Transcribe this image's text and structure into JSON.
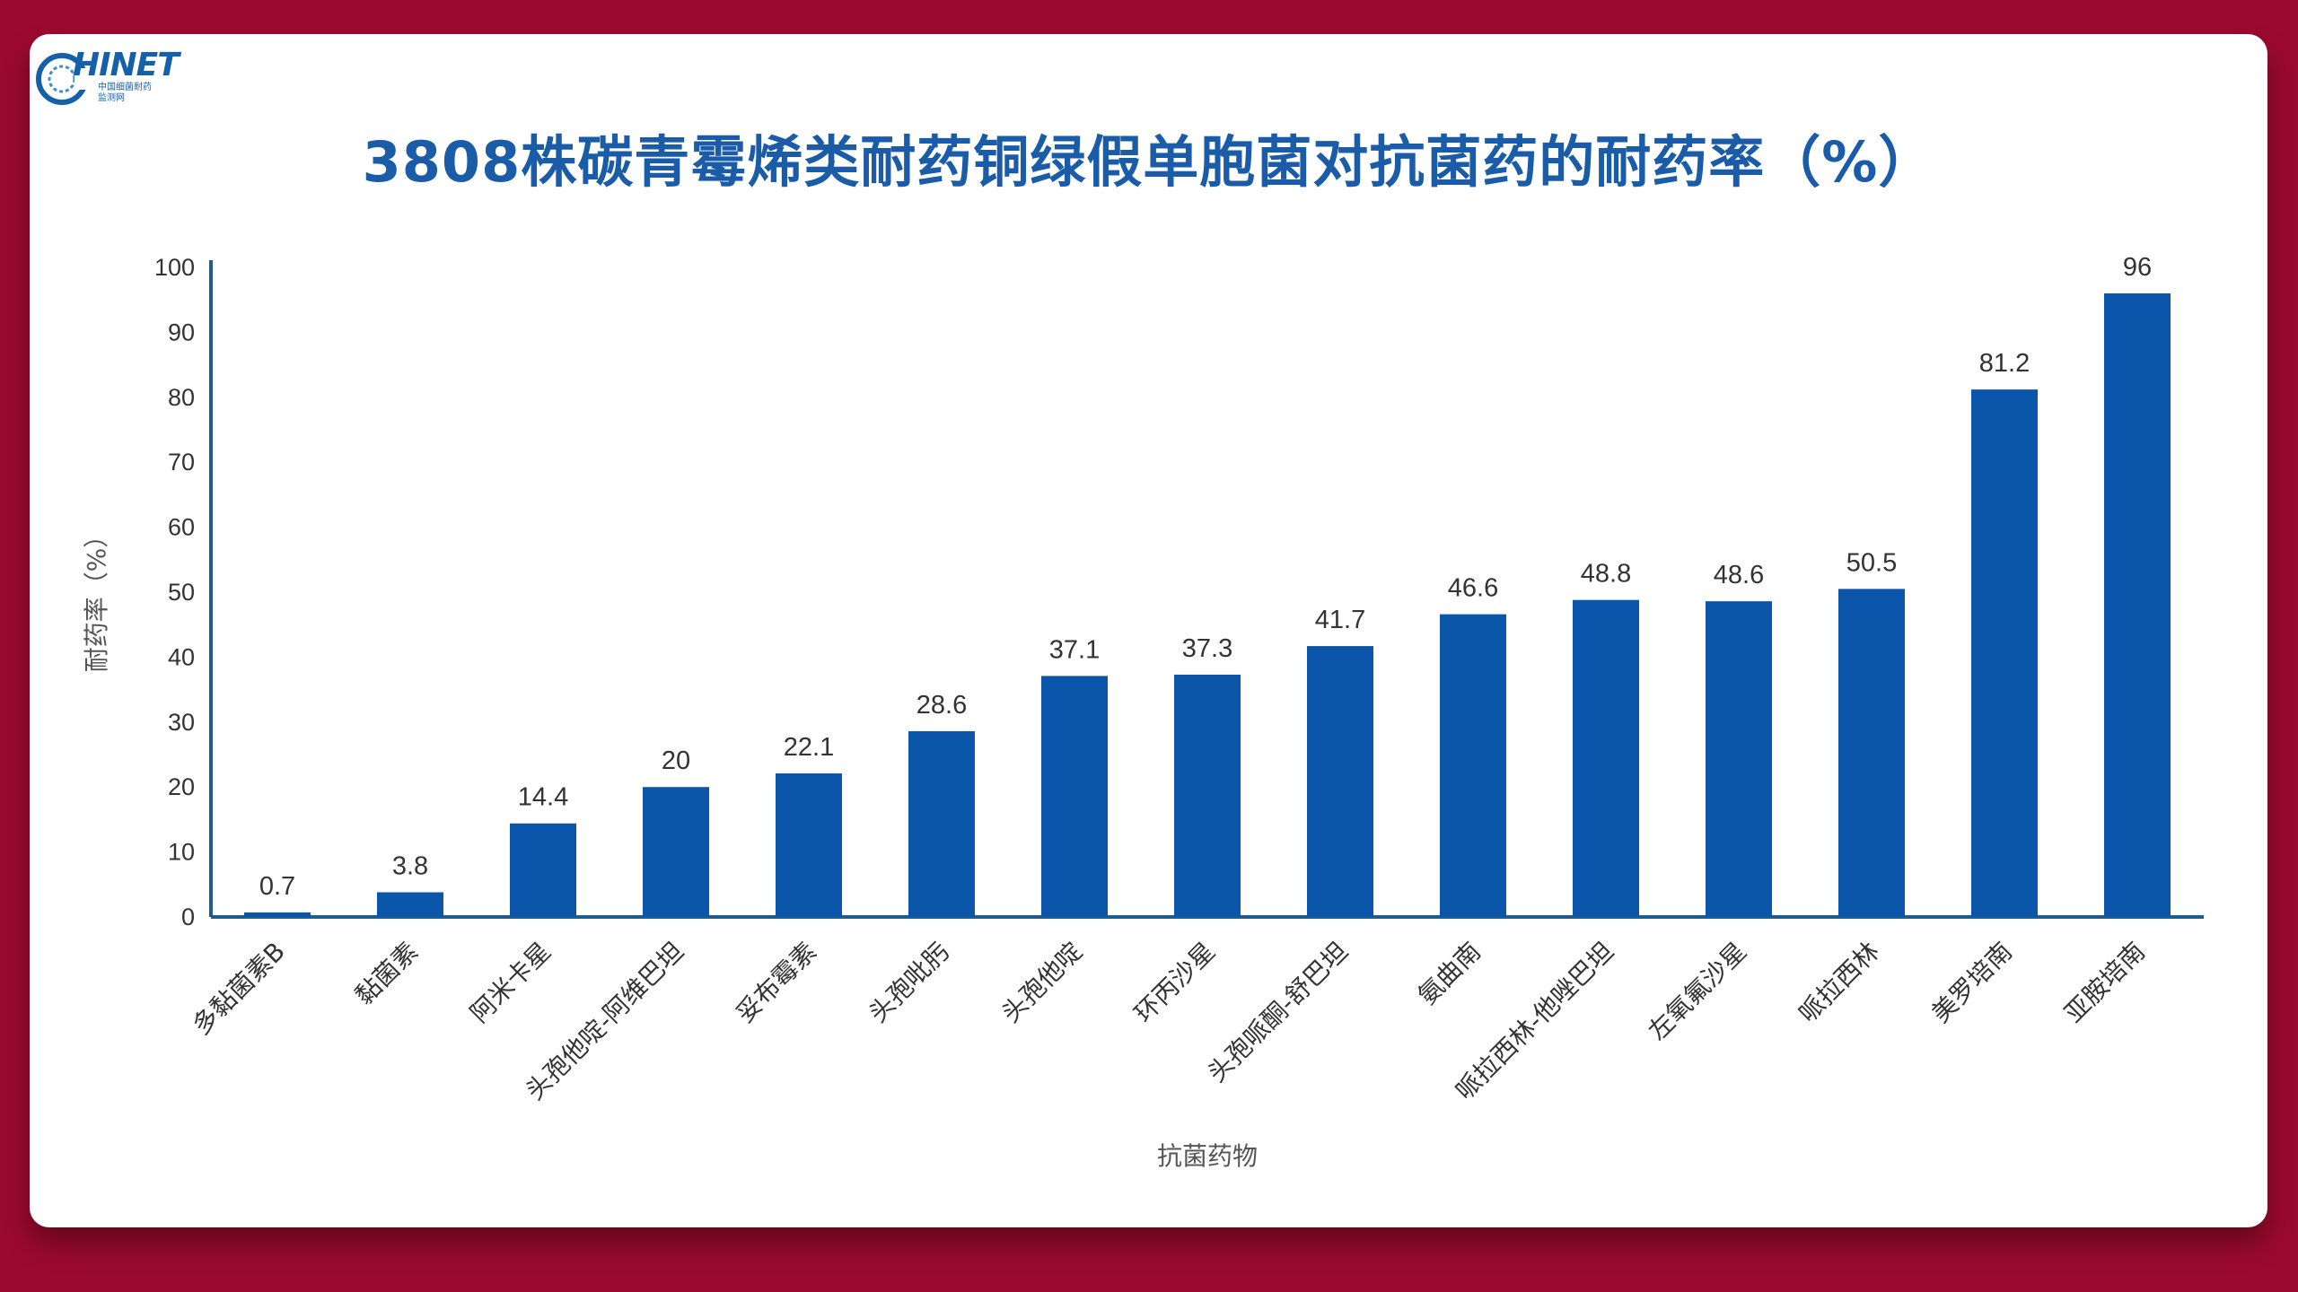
{
  "logo": {
    "word": "HINET",
    "sub_line1": "中国细菌耐药",
    "sub_line2": "监测网"
  },
  "colors": {
    "background": "#9b0a2e",
    "bar": "#0b56ab",
    "title": "#1a5ca8",
    "axis": "#1f5e8c"
  },
  "chart_data": {
    "type": "bar",
    "title": "3808株碳青霉烯类耐药铜绿假单胞菌对抗菌药的耐药率（%）",
    "xlabel": "抗菌药物",
    "ylabel": "耐药率（%）",
    "ylim": [
      0,
      100
    ],
    "yticks": [
      0,
      10,
      20,
      30,
      40,
      50,
      60,
      70,
      80,
      90,
      100
    ],
    "grid": false,
    "categories": [
      "多黏菌素B",
      "黏菌素",
      "阿米卡星",
      "头孢他啶-阿维巴坦",
      "妥布霉素",
      "头孢吡肟",
      "头孢他啶",
      "环丙沙星",
      "头孢哌酮-舒巴坦",
      "氨曲南",
      "哌拉西林-他唑巴坦",
      "左氧氟沙星",
      "哌拉西林",
      "美罗培南",
      "亚胺培南"
    ],
    "values": [
      0.7,
      3.8,
      14.4,
      20,
      22.1,
      28.6,
      37.1,
      37.3,
      41.7,
      46.6,
      48.8,
      48.6,
      50.5,
      81.2,
      96
    ]
  }
}
